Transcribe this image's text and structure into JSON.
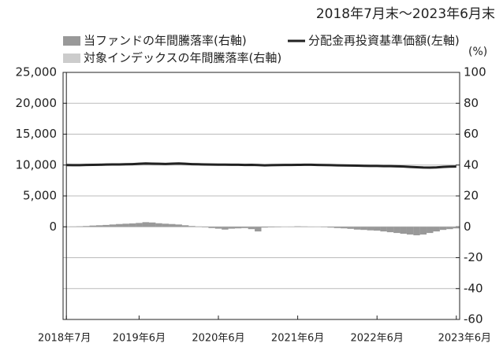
{
  "chart_data": {
    "type": "bar-line",
    "subtitle": "2018年7月末～2023年6月末",
    "y2_label": "(%)",
    "categories": [
      "2018年7月",
      null,
      null,
      null,
      null,
      null,
      null,
      null,
      null,
      null,
      null,
      "2019年6月",
      null,
      null,
      null,
      null,
      null,
      null,
      null,
      null,
      null,
      null,
      null,
      "2020年6月",
      null,
      null,
      null,
      null,
      null,
      null,
      null,
      null,
      null,
      null,
      null,
      "2021年6月",
      null,
      null,
      null,
      null,
      null,
      null,
      null,
      null,
      null,
      null,
      null,
      "2022年6月",
      null,
      null,
      null,
      null,
      null,
      null,
      null,
      null,
      null,
      null,
      null,
      "2023年6月"
    ],
    "series": [
      {
        "name": "当ファンドの年間騰落率(右軸)",
        "type": "bar",
        "axis": "y2",
        "color": "#999999",
        "values": [
          0,
          0.2,
          0.3,
          0.5,
          0.8,
          1,
          1.2,
          1.5,
          1.8,
          2,
          2.2,
          2.5,
          3,
          2.8,
          2.3,
          2,
          1.8,
          1.5,
          1,
          0.5,
          0.2,
          -0.3,
          -0.8,
          -1.2,
          -1.8,
          -1.2,
          -1,
          -0.8,
          -1.5,
          -3,
          -0.5,
          -0.3,
          -0.2,
          0,
          0.1,
          0.3,
          0.2,
          0.1,
          0,
          -0.2,
          -0.5,
          -0.8,
          -1,
          -1.3,
          -1.8,
          -2,
          -2.3,
          -2.5,
          -3,
          -3.5,
          -4,
          -4.5,
          -5,
          -5.5,
          -5,
          -4,
          -3,
          -2,
          -1.5,
          -1
        ]
      },
      {
        "name": "対象インデックスの年間騰落率(右軸)",
        "type": "bar",
        "axis": "y2",
        "color": "#cccccc",
        "values": [
          0,
          0.2,
          0.3,
          0.4,
          0.7,
          0.9,
          1.1,
          1.4,
          1.6,
          1.8,
          2,
          2.3,
          2.7,
          2.5,
          2.1,
          1.8,
          1.6,
          1.3,
          0.9,
          0.4,
          0.2,
          -0.3,
          -0.7,
          -1.1,
          -1.6,
          -1.1,
          -0.9,
          -0.7,
          -1.3,
          -2.7,
          -0.4,
          -0.3,
          -0.2,
          0,
          0.1,
          0.3,
          0.2,
          0.1,
          0,
          -0.2,
          -0.4,
          -0.7,
          -0.9,
          -1.2,
          -1.6,
          -1.8,
          -2.1,
          -2.3,
          -2.7,
          -3.2,
          -3.6,
          -4,
          -4.5,
          -5,
          -4.5,
          -3.6,
          -2.7,
          -1.8,
          -1.4,
          -0.9
        ]
      },
      {
        "name": "分配金再投資基準価額(左軸)",
        "type": "line",
        "axis": "y",
        "color": "#222222",
        "values": [
          10000,
          9980,
          9990,
          10010,
          10030,
          10050,
          10080,
          10100,
          10090,
          10120,
          10150,
          10200,
          10250,
          10220,
          10200,
          10180,
          10220,
          10250,
          10200,
          10150,
          10120,
          10100,
          10080,
          10070,
          10060,
          10050,
          10040,
          10020,
          10030,
          10000,
          9950,
          9980,
          10000,
          10010,
          10020,
          10030,
          10040,
          10050,
          10020,
          10000,
          9980,
          9960,
          9940,
          9920,
          9900,
          9880,
          9860,
          9850,
          9830,
          9820,
          9800,
          9760,
          9700,
          9650,
          9600,
          9580,
          9620,
          9700,
          9750,
          9760
        ]
      }
    ],
    "ylim": [
      -15000,
      25000
    ],
    "yticks": [
      {
        "value": 0,
        "label": "0"
      },
      {
        "value": 5000,
        "label": "5,000"
      },
      {
        "value": 10000,
        "label": "10,000"
      },
      {
        "value": 15000,
        "label": "15,000"
      },
      {
        "value": 20000,
        "label": "20,000"
      },
      {
        "value": 25000,
        "label": "25,000"
      }
    ],
    "y2lim": [
      -60,
      100
    ],
    "y2ticks": [
      -60,
      -40,
      -20,
      0,
      20,
      40,
      60,
      80,
      100
    ],
    "grid": true
  }
}
